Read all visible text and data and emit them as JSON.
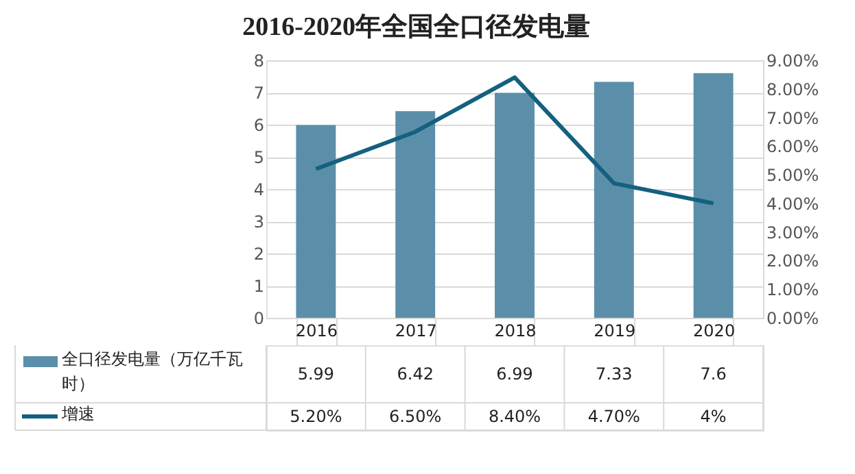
{
  "chart_data": {
    "type": "bar",
    "title": "2016-2020年全国全口径发电量",
    "categories": [
      "2016",
      "2017",
      "2018",
      "2019",
      "2020"
    ],
    "series": [
      {
        "name": "全口径发电量（万亿千瓦时）",
        "color": "#5b8fa9",
        "values": [
          5.99,
          6.42,
          6.99,
          7.33,
          7.6
        ],
        "value_labels": [
          "5.99",
          "6.42",
          "6.99",
          "7.33",
          "7.6"
        ]
      },
      {
        "name": "增速",
        "type": "line",
        "axis": "y2",
        "color": "#15607f",
        "values": [
          5.2,
          6.5,
          8.4,
          4.7,
          4
        ],
        "value_labels": [
          "5.20%",
          "6.50%",
          "8.40%",
          "4.70%",
          "4%"
        ]
      }
    ],
    "ylim": [
      0,
      8
    ],
    "yticks": [
      0,
      1,
      2,
      3,
      4,
      5,
      6,
      7,
      8
    ],
    "y2lim": [
      0,
      9
    ],
    "y2ticks": [
      {
        "value": 0,
        "label": "0.00%"
      },
      {
        "value": 1,
        "label": "1.00%"
      },
      {
        "value": 2,
        "label": "2.00%"
      },
      {
        "value": 3,
        "label": "3.00%"
      },
      {
        "value": 4,
        "label": "4.00%"
      },
      {
        "value": 5,
        "label": "5.00%"
      },
      {
        "value": 6,
        "label": "6.00%"
      },
      {
        "value": 7,
        "label": "7.00%"
      },
      {
        "value": 8,
        "label": "8.00%"
      },
      {
        "value": 9,
        "label": "9.00%"
      }
    ],
    "grid": "y",
    "legend": "bottom",
    "marker": "none",
    "line_style": "solid"
  }
}
